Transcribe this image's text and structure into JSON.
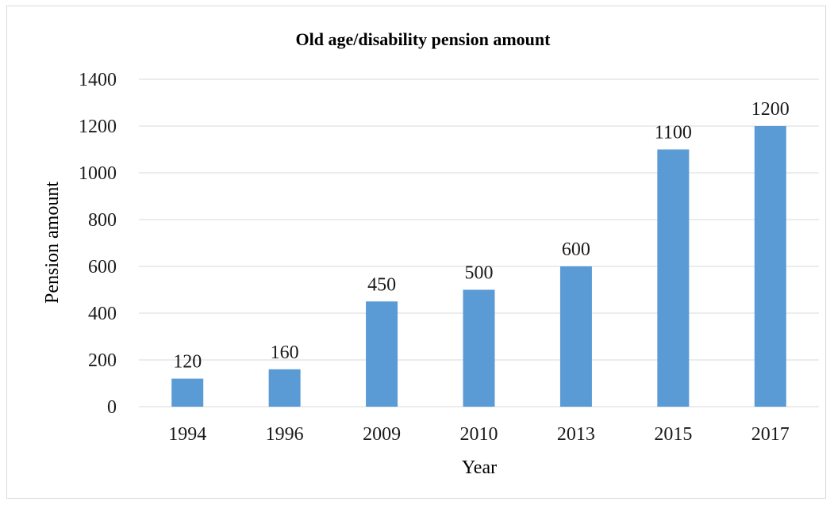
{
  "chart_data": {
    "type": "bar",
    "title": "Old age/disability pension amount",
    "xlabel": "Year",
    "ylabel": "Pension amount",
    "categories": [
      "1994",
      "1996",
      "2009",
      "2010",
      "2013",
      "2015",
      "2017"
    ],
    "values": [
      120,
      160,
      450,
      500,
      600,
      1100,
      1200
    ],
    "ylim": [
      0,
      1400
    ],
    "yticks": [
      0,
      200,
      400,
      600,
      800,
      1000,
      1200,
      1400
    ],
    "data_labels": true,
    "grid": true,
    "legend": "none",
    "bar_color": "#5b9bd5"
  }
}
